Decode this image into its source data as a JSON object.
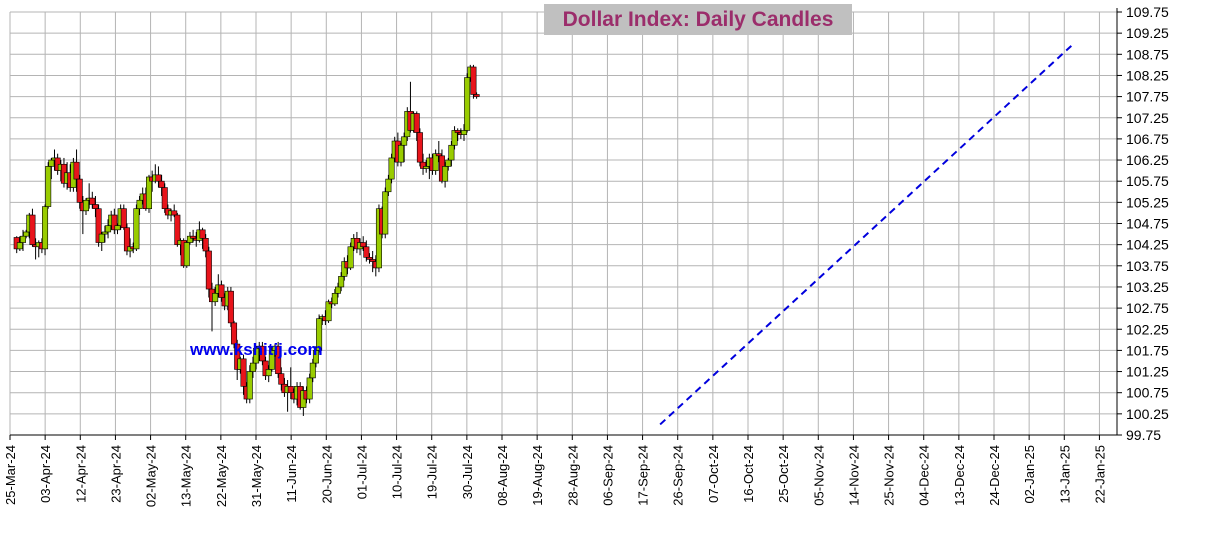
{
  "chart_data": {
    "type": "candlestick",
    "title": "Dollar Index: Daily Candles",
    "xlabel": "",
    "ylabel": "",
    "ylim": [
      99.75,
      109.75
    ],
    "y_ticks": [
      "109.75",
      "109.25",
      "108.75",
      "108.25",
      "107.75",
      "107.25",
      "106.75",
      "106.25",
      "105.75",
      "105.25",
      "104.75",
      "104.25",
      "103.75",
      "103.25",
      "102.75",
      "102.25",
      "101.75",
      "101.25",
      "100.75",
      "100.25",
      "99.75"
    ],
    "x_ticks": [
      "25-Mar-24",
      "03-Apr-24",
      "12-Apr-24",
      "23-Apr-24",
      "02-May-24",
      "13-May-24",
      "22-May-24",
      "31-May-24",
      "11-Jun-24",
      "20-Jun-24",
      "01-Jul-24",
      "10-Jul-24",
      "19-Jul-24",
      "30-Jul-24",
      "08-Aug-24",
      "19-Aug-24",
      "28-Aug-24",
      "06-Sep-24",
      "17-Sep-24",
      "26-Sep-24",
      "07-Oct-24",
      "16-Oct-24",
      "25-Oct-24",
      "05-Nov-24",
      "14-Nov-24",
      "25-Nov-24",
      "04-Dec-24",
      "13-Dec-24",
      "24-Dec-24",
      "02-Jan-25",
      "13-Jan-25",
      "22-Jan-25"
    ],
    "grid": true,
    "colors": {
      "up": "#99cc00",
      "down": "#e8141b",
      "trendline": "#0000dd",
      "grid": "#b4b4b4"
    },
    "trendline": {
      "style": "dashed",
      "points": [
        [
          18.5,
          100.0
        ],
        [
          30.2,
          108.95
        ]
      ]
    },
    "candles_ohlc": [
      [
        104.42,
        104.45,
        104.05,
        104.15
      ],
      [
        104.15,
        104.45,
        104.1,
        104.3
      ],
      [
        104.3,
        104.6,
        104.1,
        104.45
      ],
      [
        104.45,
        104.6,
        104.4,
        104.55
      ],
      [
        104.55,
        105.0,
        104.4,
        104.95
      ],
      [
        104.95,
        105.1,
        104.2,
        104.25
      ],
      [
        104.25,
        104.4,
        103.9,
        104.2
      ],
      [
        104.2,
        104.35,
        103.95,
        104.3
      ],
      [
        104.3,
        104.4,
        104.05,
        104.15
      ],
      [
        104.15,
        105.2,
        104.0,
        105.15
      ],
      [
        105.15,
        106.2,
        105.1,
        106.1
      ],
      [
        106.1,
        106.3,
        105.8,
        106.25
      ],
      [
        106.25,
        106.5,
        106.0,
        106.3
      ],
      [
        106.3,
        106.4,
        105.9,
        106.0
      ],
      [
        106.0,
        106.25,
        105.75,
        106.15
      ],
      [
        106.15,
        106.3,
        105.6,
        105.7
      ],
      [
        105.7,
        106.2,
        105.55,
        105.95
      ],
      [
        105.95,
        106.15,
        105.5,
        105.6
      ],
      [
        105.6,
        106.3,
        105.5,
        106.2
      ],
      [
        106.2,
        106.5,
        105.5,
        105.8
      ],
      [
        105.8,
        105.9,
        105.1,
        105.25
      ],
      [
        105.25,
        105.4,
        104.5,
        105.05
      ],
      [
        105.05,
        105.35,
        104.95,
        105.3
      ],
      [
        105.3,
        105.7,
        105.1,
        105.35
      ],
      [
        105.35,
        105.5,
        105.1,
        105.2
      ],
      [
        105.2,
        105.4,
        104.9,
        105.1
      ],
      [
        105.1,
        105.2,
        104.2,
        104.3
      ],
      [
        104.3,
        104.55,
        104.1,
        104.5
      ],
      [
        104.5,
        104.7,
        104.3,
        104.55
      ],
      [
        104.55,
        104.85,
        104.4,
        104.7
      ],
      [
        104.7,
        105.05,
        104.6,
        104.95
      ],
      [
        104.95,
        105.1,
        104.5,
        104.6
      ],
      [
        104.6,
        104.75,
        104.5,
        104.7
      ],
      [
        104.7,
        105.2,
        104.6,
        105.1
      ],
      [
        105.1,
        105.2,
        104.6,
        104.65
      ],
      [
        104.65,
        104.75,
        104.0,
        104.1
      ],
      [
        104.1,
        104.4,
        103.95,
        104.2
      ],
      [
        104.2,
        104.3,
        104.05,
        104.15
      ],
      [
        104.15,
        105.2,
        104.1,
        105.1
      ],
      [
        105.1,
        105.4,
        104.95,
        105.3
      ],
      [
        105.3,
        105.6,
        105.2,
        105.45
      ],
      [
        105.45,
        105.6,
        105.05,
        105.1
      ],
      [
        105.1,
        105.9,
        105.0,
        105.85
      ],
      [
        105.85,
        106.0,
        105.5,
        105.75
      ],
      [
        105.75,
        106.15,
        105.7,
        105.9
      ],
      [
        105.9,
        106.1,
        105.6,
        105.75
      ],
      [
        105.75,
        105.9,
        105.4,
        105.6
      ],
      [
        105.6,
        105.7,
        105.0,
        105.1
      ],
      [
        105.1,
        105.2,
        104.85,
        104.95
      ],
      [
        104.95,
        105.1,
        104.8,
        105.05
      ],
      [
        105.05,
        105.2,
        104.9,
        104.95
      ],
      [
        104.95,
        105.0,
        104.2,
        104.25
      ],
      [
        104.25,
        104.4,
        104.0,
        104.35
      ],
      [
        104.35,
        104.4,
        103.7,
        103.75
      ],
      [
        103.75,
        104.35,
        103.7,
        104.3
      ],
      [
        104.3,
        104.55,
        104.25,
        104.45
      ],
      [
        104.45,
        104.6,
        104.3,
        104.4
      ],
      [
        104.4,
        104.55,
        104.2,
        104.35
      ],
      [
        104.35,
        104.8,
        104.3,
        104.6
      ],
      [
        104.6,
        104.65,
        104.15,
        104.4
      ],
      [
        104.4,
        104.5,
        103.95,
        104.1
      ],
      [
        104.1,
        104.2,
        103.0,
        103.2
      ],
      [
        103.2,
        103.35,
        102.2,
        102.9
      ],
      [
        102.9,
        103.25,
        102.8,
        103.1
      ],
      [
        103.1,
        103.55,
        103.0,
        103.3
      ],
      [
        103.3,
        103.4,
        102.9,
        103.0
      ],
      [
        103.0,
        103.1,
        102.7,
        102.8
      ],
      [
        102.8,
        103.25,
        102.7,
        103.15
      ],
      [
        103.15,
        103.25,
        102.3,
        102.4
      ],
      [
        102.4,
        102.45,
        101.8,
        101.9
      ],
      [
        101.9,
        102.0,
        101.05,
        101.3
      ],
      [
        101.3,
        101.6,
        101.2,
        101.55
      ],
      [
        101.55,
        101.65,
        100.7,
        100.9
      ],
      [
        100.9,
        101.0,
        100.5,
        100.6
      ],
      [
        100.6,
        101.4,
        100.5,
        101.25
      ],
      [
        101.25,
        101.6,
        101.1,
        101.45
      ],
      [
        101.45,
        101.85,
        101.3,
        101.8
      ],
      [
        101.8,
        101.95,
        101.5,
        101.85
      ],
      [
        101.85,
        101.95,
        101.4,
        101.5
      ],
      [
        101.5,
        101.6,
        101.05,
        101.15
      ],
      [
        101.15,
        101.4,
        101.0,
        101.3
      ],
      [
        101.3,
        101.85,
        101.25,
        101.75
      ],
      [
        101.75,
        101.9,
        101.6,
        101.85
      ],
      [
        101.85,
        101.95,
        101.1,
        101.2
      ],
      [
        101.2,
        101.35,
        100.8,
        100.95
      ],
      [
        100.95,
        101.1,
        100.65,
        100.75
      ],
      [
        100.75,
        101.05,
        100.3,
        100.9
      ],
      [
        100.9,
        101.35,
        100.6,
        100.75
      ],
      [
        100.75,
        100.85,
        100.5,
        100.6
      ],
      [
        100.6,
        101.0,
        100.45,
        100.9
      ],
      [
        100.9,
        101.0,
        100.35,
        100.4
      ],
      [
        100.4,
        100.9,
        100.2,
        100.8
      ],
      [
        100.8,
        100.9,
        100.5,
        100.6
      ],
      [
        100.6,
        101.2,
        100.5,
        101.1
      ],
      [
        101.1,
        101.55,
        101.0,
        101.45
      ],
      [
        101.45,
        101.85,
        101.35,
        101.75
      ],
      [
        101.75,
        102.6,
        101.7,
        102.5
      ],
      [
        102.5,
        102.6,
        102.35,
        102.55
      ],
      [
        102.55,
        102.7,
        102.35,
        102.45
      ],
      [
        102.45,
        102.95,
        102.4,
        102.9
      ],
      [
        102.9,
        103.0,
        102.75,
        102.85
      ],
      [
        102.85,
        103.2,
        102.8,
        103.1
      ],
      [
        103.1,
        103.35,
        103.0,
        103.25
      ],
      [
        103.25,
        103.6,
        103.15,
        103.5
      ],
      [
        103.5,
        103.95,
        103.4,
        103.85
      ],
      [
        103.85,
        104.0,
        103.55,
        103.7
      ],
      [
        103.7,
        104.3,
        103.65,
        104.2
      ],
      [
        104.2,
        104.5,
        104.1,
        104.4
      ],
      [
        104.4,
        104.55,
        104.05,
        104.15
      ],
      [
        104.15,
        104.4,
        104.0,
        104.3
      ],
      [
        104.3,
        104.45,
        104.1,
        104.2
      ],
      [
        104.2,
        104.35,
        103.85,
        103.95
      ],
      [
        103.95,
        104.05,
        103.8,
        103.9
      ],
      [
        103.9,
        104.1,
        103.6,
        103.85
      ],
      [
        103.85,
        104.0,
        103.5,
        103.7
      ],
      [
        103.7,
        105.2,
        103.6,
        105.1
      ],
      [
        105.1,
        105.15,
        104.4,
        104.5
      ],
      [
        104.5,
        105.6,
        104.4,
        105.5
      ],
      [
        105.5,
        105.9,
        105.4,
        105.8
      ],
      [
        105.8,
        106.4,
        105.7,
        106.3
      ],
      [
        106.3,
        106.8,
        106.2,
        106.7
      ],
      [
        106.7,
        106.9,
        106.1,
        106.2
      ],
      [
        106.2,
        106.65,
        106.1,
        106.6
      ],
      [
        106.6,
        106.9,
        106.2,
        106.8
      ],
      [
        106.8,
        107.5,
        106.7,
        107.4
      ],
      [
        107.4,
        108.1,
        106.9,
        106.95
      ],
      [
        106.95,
        107.4,
        106.9,
        107.35
      ],
      [
        107.35,
        107.4,
        106.7,
        106.9
      ],
      [
        106.9,
        107.0,
        106.1,
        106.2
      ],
      [
        106.2,
        106.4,
        105.9,
        106.05
      ],
      [
        106.05,
        106.25,
        105.95,
        106.1
      ],
      [
        106.1,
        106.4,
        105.8,
        106.3
      ],
      [
        106.3,
        106.4,
        105.9,
        106.0
      ],
      [
        106.0,
        106.5,
        105.9,
        106.4
      ],
      [
        106.4,
        106.7,
        106.2,
        106.35
      ],
      [
        106.35,
        106.5,
        105.7,
        105.75
      ],
      [
        105.75,
        106.2,
        105.6,
        106.1
      ],
      [
        106.1,
        106.3,
        106.0,
        106.25
      ],
      [
        106.25,
        106.7,
        106.1,
        106.6
      ],
      [
        106.6,
        107.05,
        106.5,
        106.95
      ],
      [
        106.95,
        107.0,
        106.7,
        106.9
      ],
      [
        106.9,
        107.0,
        106.75,
        106.85
      ],
      [
        106.85,
        107.1,
        106.7,
        106.95
      ],
      [
        106.95,
        108.3,
        106.9,
        108.2
      ],
      [
        108.2,
        108.5,
        108.1,
        108.45
      ],
      [
        108.45,
        108.5,
        107.7,
        107.8
      ],
      [
        107.8,
        107.85,
        107.7,
        107.75
      ]
    ]
  }
}
